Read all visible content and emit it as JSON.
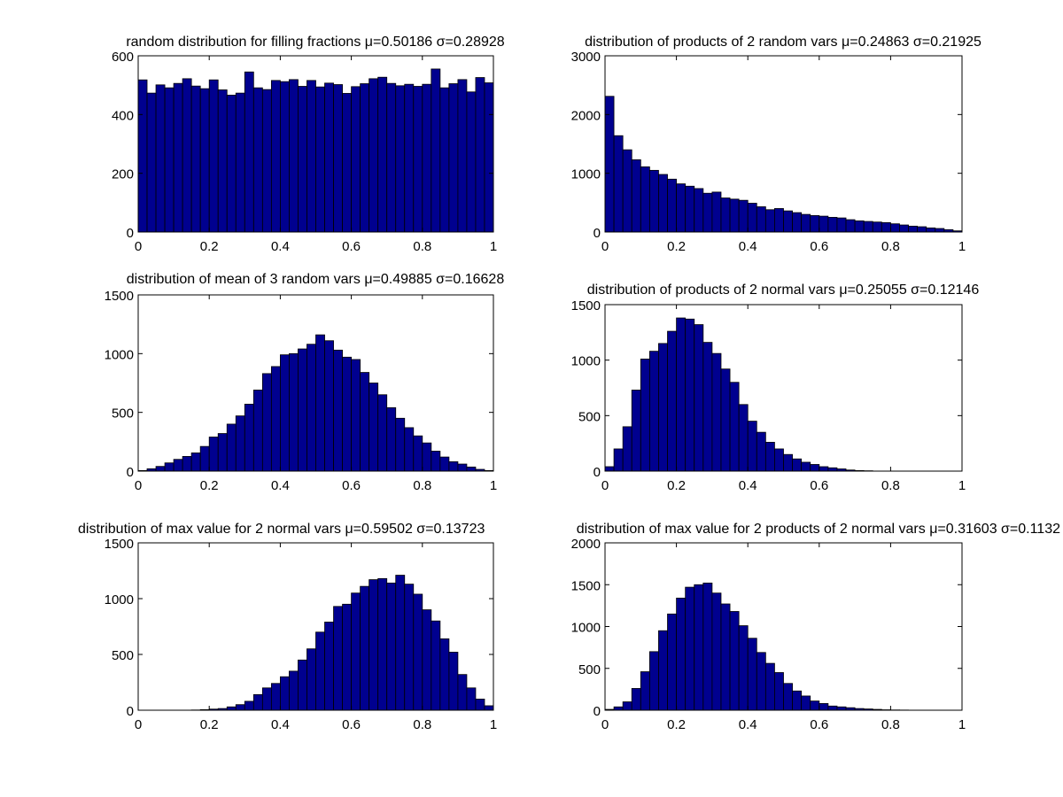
{
  "figure": {
    "bar_fill": "#00008f",
    "bar_edge": "#000000",
    "background": "#ffffff"
  },
  "chart_data": [
    {
      "type": "bar",
      "title": "random distribution for filling fractions μ=0.50186 σ=0.28928",
      "xlim": [
        0,
        1
      ],
      "ylim": [
        0,
        600
      ],
      "xticks": [
        "0",
        "0.2",
        "0.4",
        "0.6",
        "0.8",
        "1"
      ],
      "yticks": [
        "0",
        "200",
        "400",
        "600"
      ],
      "bins": 40,
      "values": [
        518,
        473,
        501,
        491,
        506,
        522,
        497,
        488,
        518,
        484,
        466,
        473,
        545,
        491,
        485,
        516,
        512,
        519,
        496,
        516,
        494,
        507,
        502,
        472,
        495,
        505,
        522,
        527,
        506,
        498,
        503,
        496,
        503,
        555,
        491,
        505,
        519,
        477,
        526,
        508
      ]
    },
    {
      "type": "bar",
      "title": "distribution of products of 2 random vars μ=0.24863 σ=0.21925",
      "xlim": [
        0,
        1
      ],
      "ylim": [
        0,
        3000
      ],
      "xticks": [
        "0",
        "0.2",
        "0.4",
        "0.6",
        "0.8",
        "1"
      ],
      "yticks": [
        "0",
        "1000",
        "2000",
        "3000"
      ],
      "bins": 40,
      "values": [
        2310,
        1640,
        1400,
        1230,
        1110,
        1050,
        980,
        900,
        820,
        780,
        740,
        660,
        680,
        580,
        560,
        540,
        490,
        430,
        380,
        400,
        360,
        330,
        300,
        280,
        270,
        250,
        240,
        210,
        190,
        180,
        170,
        160,
        140,
        120,
        100,
        90,
        70,
        60,
        40,
        20
      ]
    },
    {
      "type": "bar",
      "title": "distribution of mean of 3 random vars μ=0.49885 σ=0.16628",
      "xlim": [
        0,
        1
      ],
      "ylim": [
        0,
        1500
      ],
      "xticks": [
        "0",
        "0.2",
        "0.4",
        "0.6",
        "0.8",
        "1"
      ],
      "yticks": [
        "0",
        "500",
        "1000",
        "1500"
      ],
      "bins": 40,
      "values": [
        5,
        20,
        40,
        70,
        100,
        125,
        155,
        210,
        290,
        320,
        400,
        470,
        570,
        690,
        830,
        890,
        990,
        1000,
        1040,
        1080,
        1160,
        1110,
        1030,
        970,
        950,
        840,
        750,
        650,
        540,
        450,
        370,
        300,
        240,
        170,
        120,
        80,
        60,
        35,
        15,
        5
      ]
    },
    {
      "type": "bar",
      "title": "distribution of products of 2 normal vars μ=0.25055 σ=0.12146",
      "xlim": [
        0,
        1
      ],
      "ylim": [
        0,
        1500
      ],
      "xticks": [
        "0",
        "0.2",
        "0.4",
        "0.6",
        "0.8",
        "1"
      ],
      "yticks": [
        "0",
        "500",
        "1000",
        "1500"
      ],
      "bins": 40,
      "values": [
        40,
        200,
        400,
        730,
        1010,
        1080,
        1150,
        1260,
        1380,
        1370,
        1320,
        1160,
        1060,
        920,
        800,
        600,
        450,
        350,
        260,
        200,
        150,
        110,
        80,
        60,
        40,
        30,
        20,
        10,
        5,
        3,
        0,
        0,
        0,
        0,
        0,
        0,
        0,
        0,
        0,
        0
      ]
    },
    {
      "type": "bar",
      "title": "distribution of max value for 2 normal vars μ=0.59502 σ=0.13723",
      "xlim": [
        0,
        1
      ],
      "ylim": [
        0,
        1500
      ],
      "xticks": [
        "0",
        "0.2",
        "0.4",
        "0.6",
        "0.8",
        "1"
      ],
      "yticks": [
        "0",
        "500",
        "1000",
        "1500"
      ],
      "bins": 40,
      "values": [
        0,
        0,
        0,
        0,
        0,
        0,
        2,
        5,
        10,
        15,
        30,
        50,
        80,
        140,
        200,
        240,
        300,
        350,
        450,
        550,
        700,
        790,
        930,
        950,
        1050,
        1110,
        1170,
        1180,
        1140,
        1210,
        1130,
        1040,
        900,
        800,
        640,
        520,
        320,
        200,
        100,
        40
      ]
    },
    {
      "type": "bar",
      "title": "distribution of max value for 2 products of 2 normal vars μ=0.31603 σ=0.1132",
      "xlim": [
        0,
        1
      ],
      "ylim": [
        0,
        2000
      ],
      "xticks": [
        "0",
        "0.2",
        "0.4",
        "0.6",
        "0.8",
        "1"
      ],
      "yticks": [
        "0",
        "500",
        "1000",
        "1500",
        "2000"
      ],
      "bins": 40,
      "values": [
        10,
        40,
        100,
        260,
        460,
        700,
        950,
        1150,
        1340,
        1470,
        1500,
        1520,
        1400,
        1270,
        1180,
        1010,
        860,
        690,
        560,
        450,
        320,
        230,
        170,
        110,
        80,
        50,
        40,
        30,
        20,
        15,
        10,
        5,
        3,
        2,
        1,
        0,
        0,
        0,
        0,
        0
      ]
    }
  ]
}
